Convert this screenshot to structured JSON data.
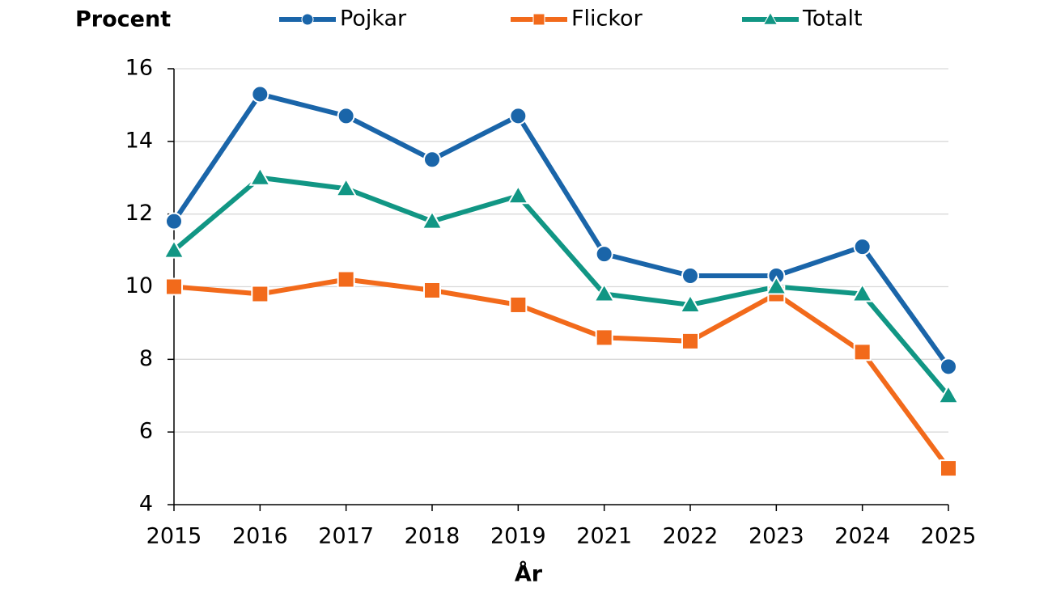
{
  "chart_data": {
    "type": "line",
    "y_label": "Procent",
    "x_label": "År",
    "categories": [
      "2015",
      "2016",
      "2017",
      "2018",
      "2019",
      "2021",
      "2022",
      "2023",
      "2024",
      "2025"
    ],
    "series": [
      {
        "name": "Pojkar",
        "color": "#1a65a9",
        "marker": "circle",
        "values": [
          11.8,
          15.3,
          14.7,
          13.5,
          14.7,
          10.9,
          10.3,
          10.3,
          11.1,
          7.8
        ]
      },
      {
        "name": "Flickor",
        "color": "#f26a1b",
        "marker": "square",
        "values": [
          10.0,
          9.8,
          10.2,
          9.9,
          9.5,
          8.6,
          8.5,
          9.8,
          8.2,
          5.0
        ]
      },
      {
        "name": "Totalt",
        "color": "#119684",
        "marker": "triangle",
        "values": [
          11.0,
          13.0,
          12.7,
          11.8,
          12.5,
          9.8,
          9.5,
          10.0,
          9.8,
          7.0
        ]
      }
    ],
    "ylim": [
      4,
      16
    ],
    "yticks": [
      4,
      6,
      8,
      10,
      12,
      14,
      16
    ],
    "grid": true
  }
}
